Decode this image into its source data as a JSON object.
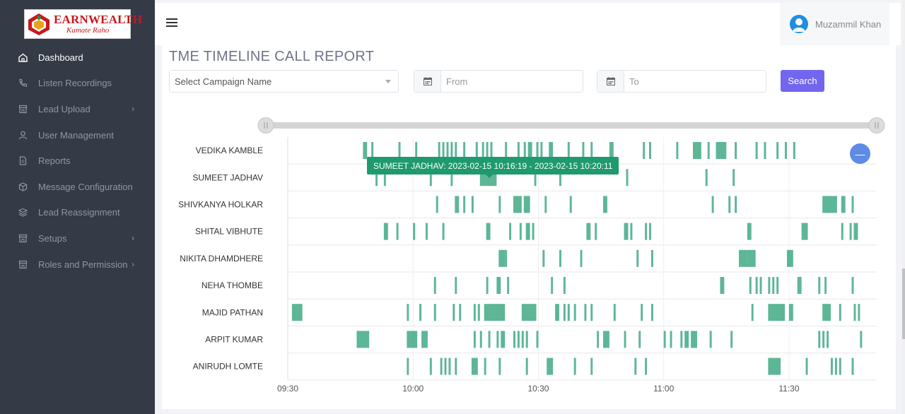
{
  "brand": {
    "name": "EARNWEALTH",
    "tagline": "Kamate Raho"
  },
  "sidebar": {
    "items": [
      {
        "label": "Dashboard",
        "icon": "home-icon",
        "active": true,
        "chevron": false
      },
      {
        "label": "Listen Recordings",
        "icon": "phone-icon",
        "active": false,
        "chevron": false
      },
      {
        "label": "Lead Upload",
        "icon": "store-icon",
        "active": false,
        "chevron": true
      },
      {
        "label": "User Management",
        "icon": "user-icon",
        "active": false,
        "chevron": false
      },
      {
        "label": "Reports",
        "icon": "file-icon",
        "active": false,
        "chevron": false
      },
      {
        "label": "Message Configuration",
        "icon": "cube-icon",
        "active": false,
        "chevron": false
      },
      {
        "label": "Lead Reassignment",
        "icon": "layers-icon",
        "active": false,
        "chevron": false
      },
      {
        "label": "Setups",
        "icon": "store-icon",
        "active": false,
        "chevron": true
      },
      {
        "label": "Roles and Permission",
        "icon": "store-icon",
        "active": false,
        "chevron": true
      }
    ]
  },
  "header": {
    "user_name": "Muzammil Khan"
  },
  "page": {
    "title": "TME TIMELINE CALL REPORT",
    "campaign_placeholder": "Select Campaign Name",
    "from_placeholder": "From",
    "to_placeholder": "To",
    "search_label": "Search"
  },
  "tooltip": "SUMEET JADHAV: 2023-02-15 10:16:19 - 2023-02-15 10:20:11",
  "colors": {
    "bar": "#1e9a6e",
    "accent": "#7266ee",
    "sidebar": "#343a46"
  },
  "chart_data": {
    "type": "timeline",
    "x_ticks": [
      "09:30",
      "10:00",
      "10:30",
      "11:00",
      "11:30"
    ],
    "x_range_minutes": [
      570,
      711
    ],
    "rows": [
      {
        "name": "VEDIKA KAMBLE",
        "calls": [
          [
            588,
            589
          ],
          [
            590,
            590.5
          ],
          [
            596.5,
            597
          ],
          [
            600.5,
            601
          ],
          [
            606,
            606.5
          ],
          [
            607,
            607.5
          ],
          [
            608,
            608.5
          ],
          [
            609,
            609.5
          ],
          [
            610,
            610.5
          ],
          [
            612,
            612.5
          ],
          [
            615,
            615.5
          ],
          [
            616.5,
            617
          ],
          [
            617.5,
            618
          ],
          [
            618.5,
            619
          ],
          [
            622,
            622.5
          ],
          [
            625,
            625.5
          ],
          [
            626.5,
            627
          ],
          [
            627.5,
            628.5
          ],
          [
            629.5,
            630
          ],
          [
            630.5,
            631
          ],
          [
            632.5,
            633.5
          ],
          [
            637,
            637.5
          ],
          [
            640.5,
            641
          ],
          [
            642.5,
            643
          ],
          [
            647,
            648
          ],
          [
            655,
            655.5
          ],
          [
            656.5,
            657
          ],
          [
            663,
            663.5
          ],
          [
            667,
            668
          ],
          [
            668,
            669
          ],
          [
            670.5,
            671
          ],
          [
            672.5,
            675
          ],
          [
            677,
            677.5
          ],
          [
            682,
            682.5
          ],
          [
            684,
            684.5
          ],
          [
            687,
            687.5
          ],
          [
            689,
            689.5
          ],
          [
            691,
            691.5
          ]
        ]
      },
      {
        "name": "SUMEET JADHAV",
        "calls": [
          [
            591,
            591.5
          ],
          [
            593,
            593.5
          ],
          [
            604,
            604.5
          ],
          [
            609,
            609.5
          ],
          [
            616,
            620
          ],
          [
            629,
            629.5
          ],
          [
            635,
            635.5
          ],
          [
            651,
            651.5
          ],
          [
            670,
            670.5
          ],
          [
            676.5,
            677
          ]
        ]
      },
      {
        "name": "SHIVKANYA HOLKAR",
        "calls": [
          [
            605.5,
            606
          ],
          [
            610,
            611
          ],
          [
            612,
            612.5
          ],
          [
            614,
            614.5
          ],
          [
            620.5,
            621
          ],
          [
            624,
            626
          ],
          [
            626.5,
            628
          ],
          [
            631.5,
            632
          ],
          [
            637.5,
            638
          ],
          [
            645.5,
            646.5
          ],
          [
            671.5,
            672
          ],
          [
            675.5,
            676
          ],
          [
            677,
            677.5
          ],
          [
            698,
            701.5
          ],
          [
            702.5,
            703.5
          ],
          [
            705,
            705.5
          ]
        ]
      },
      {
        "name": "SHITAL VIBHUTE",
        "calls": [
          [
            593,
            594
          ],
          [
            596,
            596.5
          ],
          [
            600,
            600.5
          ],
          [
            603,
            603.5
          ],
          [
            607,
            607.5
          ],
          [
            617.5,
            618.5
          ],
          [
            623,
            623.5
          ],
          [
            625.5,
            626
          ],
          [
            627,
            628
          ],
          [
            628.5,
            629
          ],
          [
            641.5,
            642.5
          ],
          [
            643.5,
            644
          ],
          [
            650.5,
            651.5
          ],
          [
            652,
            652.5
          ],
          [
            655.5,
            656
          ],
          [
            656.5,
            657
          ],
          [
            680,
            681
          ],
          [
            693,
            694.5
          ],
          [
            702.5,
            703
          ],
          [
            704.5,
            705
          ],
          [
            705.5,
            706.5
          ]
        ]
      },
      {
        "name": "NIKITA DHAMDHERE",
        "calls": [
          [
            620.5,
            622
          ],
          [
            622,
            622.5
          ],
          [
            631,
            631.5
          ],
          [
            635,
            635.5
          ],
          [
            640,
            640.5
          ],
          [
            653.5,
            654
          ],
          [
            657,
            657.5
          ],
          [
            678,
            680
          ],
          [
            680,
            682
          ],
          [
            689.5,
            691
          ]
        ]
      },
      {
        "name": "NEHA THOMBE",
        "calls": [
          [
            605,
            605.5
          ],
          [
            610,
            610.5
          ],
          [
            617.5,
            618
          ],
          [
            620,
            621
          ],
          [
            622.5,
            623
          ],
          [
            633,
            633.5
          ],
          [
            636,
            636.5
          ],
          [
            673.5,
            674.5
          ],
          [
            680.5,
            681
          ],
          [
            682,
            682.5
          ],
          [
            683,
            683.5
          ],
          [
            685,
            685.5
          ],
          [
            686,
            686.5
          ],
          [
            687,
            687.5
          ],
          [
            692,
            693
          ],
          [
            697,
            697.5
          ],
          [
            698.5,
            699
          ],
          [
            705,
            705.5
          ]
        ]
      },
      {
        "name": "MAJID PATHAN",
        "calls": [
          [
            571,
            573.5
          ],
          [
            598.5,
            599
          ],
          [
            601.5,
            602
          ],
          [
            605,
            605.5
          ],
          [
            609.5,
            610
          ],
          [
            611,
            611.5
          ],
          [
            614.5,
            615
          ],
          [
            615.5,
            616
          ],
          [
            617,
            622
          ],
          [
            626,
            629.5
          ],
          [
            634,
            635
          ],
          [
            636,
            636.5
          ],
          [
            637,
            637.5
          ],
          [
            638.5,
            639
          ],
          [
            641,
            641.5
          ],
          [
            642.5,
            643
          ],
          [
            648,
            648.5
          ],
          [
            654.5,
            655
          ],
          [
            657,
            657.5
          ],
          [
            681,
            681.5
          ],
          [
            685,
            689
          ],
          [
            690,
            691
          ],
          [
            698,
            700
          ],
          [
            702,
            702.5
          ],
          [
            705.5,
            706
          ],
          [
            706.5,
            707
          ]
        ]
      },
      {
        "name": "ARPIT KUMAR",
        "calls": [
          [
            586.5,
            589.5
          ],
          [
            598.5,
            601
          ],
          [
            602,
            603.5
          ],
          [
            614.5,
            615
          ],
          [
            616,
            616.5
          ],
          [
            618,
            618.5
          ],
          [
            620,
            620.5
          ],
          [
            621,
            622
          ],
          [
            624,
            624.5
          ],
          [
            625,
            625.5
          ],
          [
            626,
            626.5
          ],
          [
            627,
            627.5
          ],
          [
            629.5,
            630
          ],
          [
            644,
            644.5
          ],
          [
            645.5,
            647
          ],
          [
            650.5,
            651
          ],
          [
            654,
            654.5
          ],
          [
            660,
            660.5
          ],
          [
            661.5,
            662
          ],
          [
            664,
            664.5
          ],
          [
            665,
            666
          ],
          [
            666.5,
            668
          ],
          [
            671,
            671.5
          ],
          [
            676,
            676.5
          ],
          [
            697,
            697.5
          ],
          [
            698,
            698.5
          ],
          [
            699,
            699.5
          ],
          [
            707,
            707.5
          ]
        ]
      },
      {
        "name": "ANIRUDH LOMTE",
        "calls": [
          [
            598.5,
            599
          ],
          [
            604,
            604.5
          ],
          [
            606.5,
            607
          ],
          [
            607.5,
            608
          ],
          [
            608.5,
            609
          ],
          [
            610,
            610.5
          ],
          [
            614,
            615.5
          ],
          [
            617,
            617.5
          ],
          [
            620.5,
            621
          ],
          [
            627,
            627.5
          ],
          [
            632,
            633.5
          ],
          [
            638.5,
            639
          ],
          [
            642.5,
            643
          ],
          [
            653,
            653.5
          ],
          [
            655.5,
            656
          ],
          [
            685,
            688
          ],
          [
            694,
            694.5
          ],
          [
            700,
            700.5
          ],
          [
            701,
            701.5
          ],
          [
            702,
            702.5
          ],
          [
            705,
            705.5
          ]
        ]
      }
    ]
  }
}
